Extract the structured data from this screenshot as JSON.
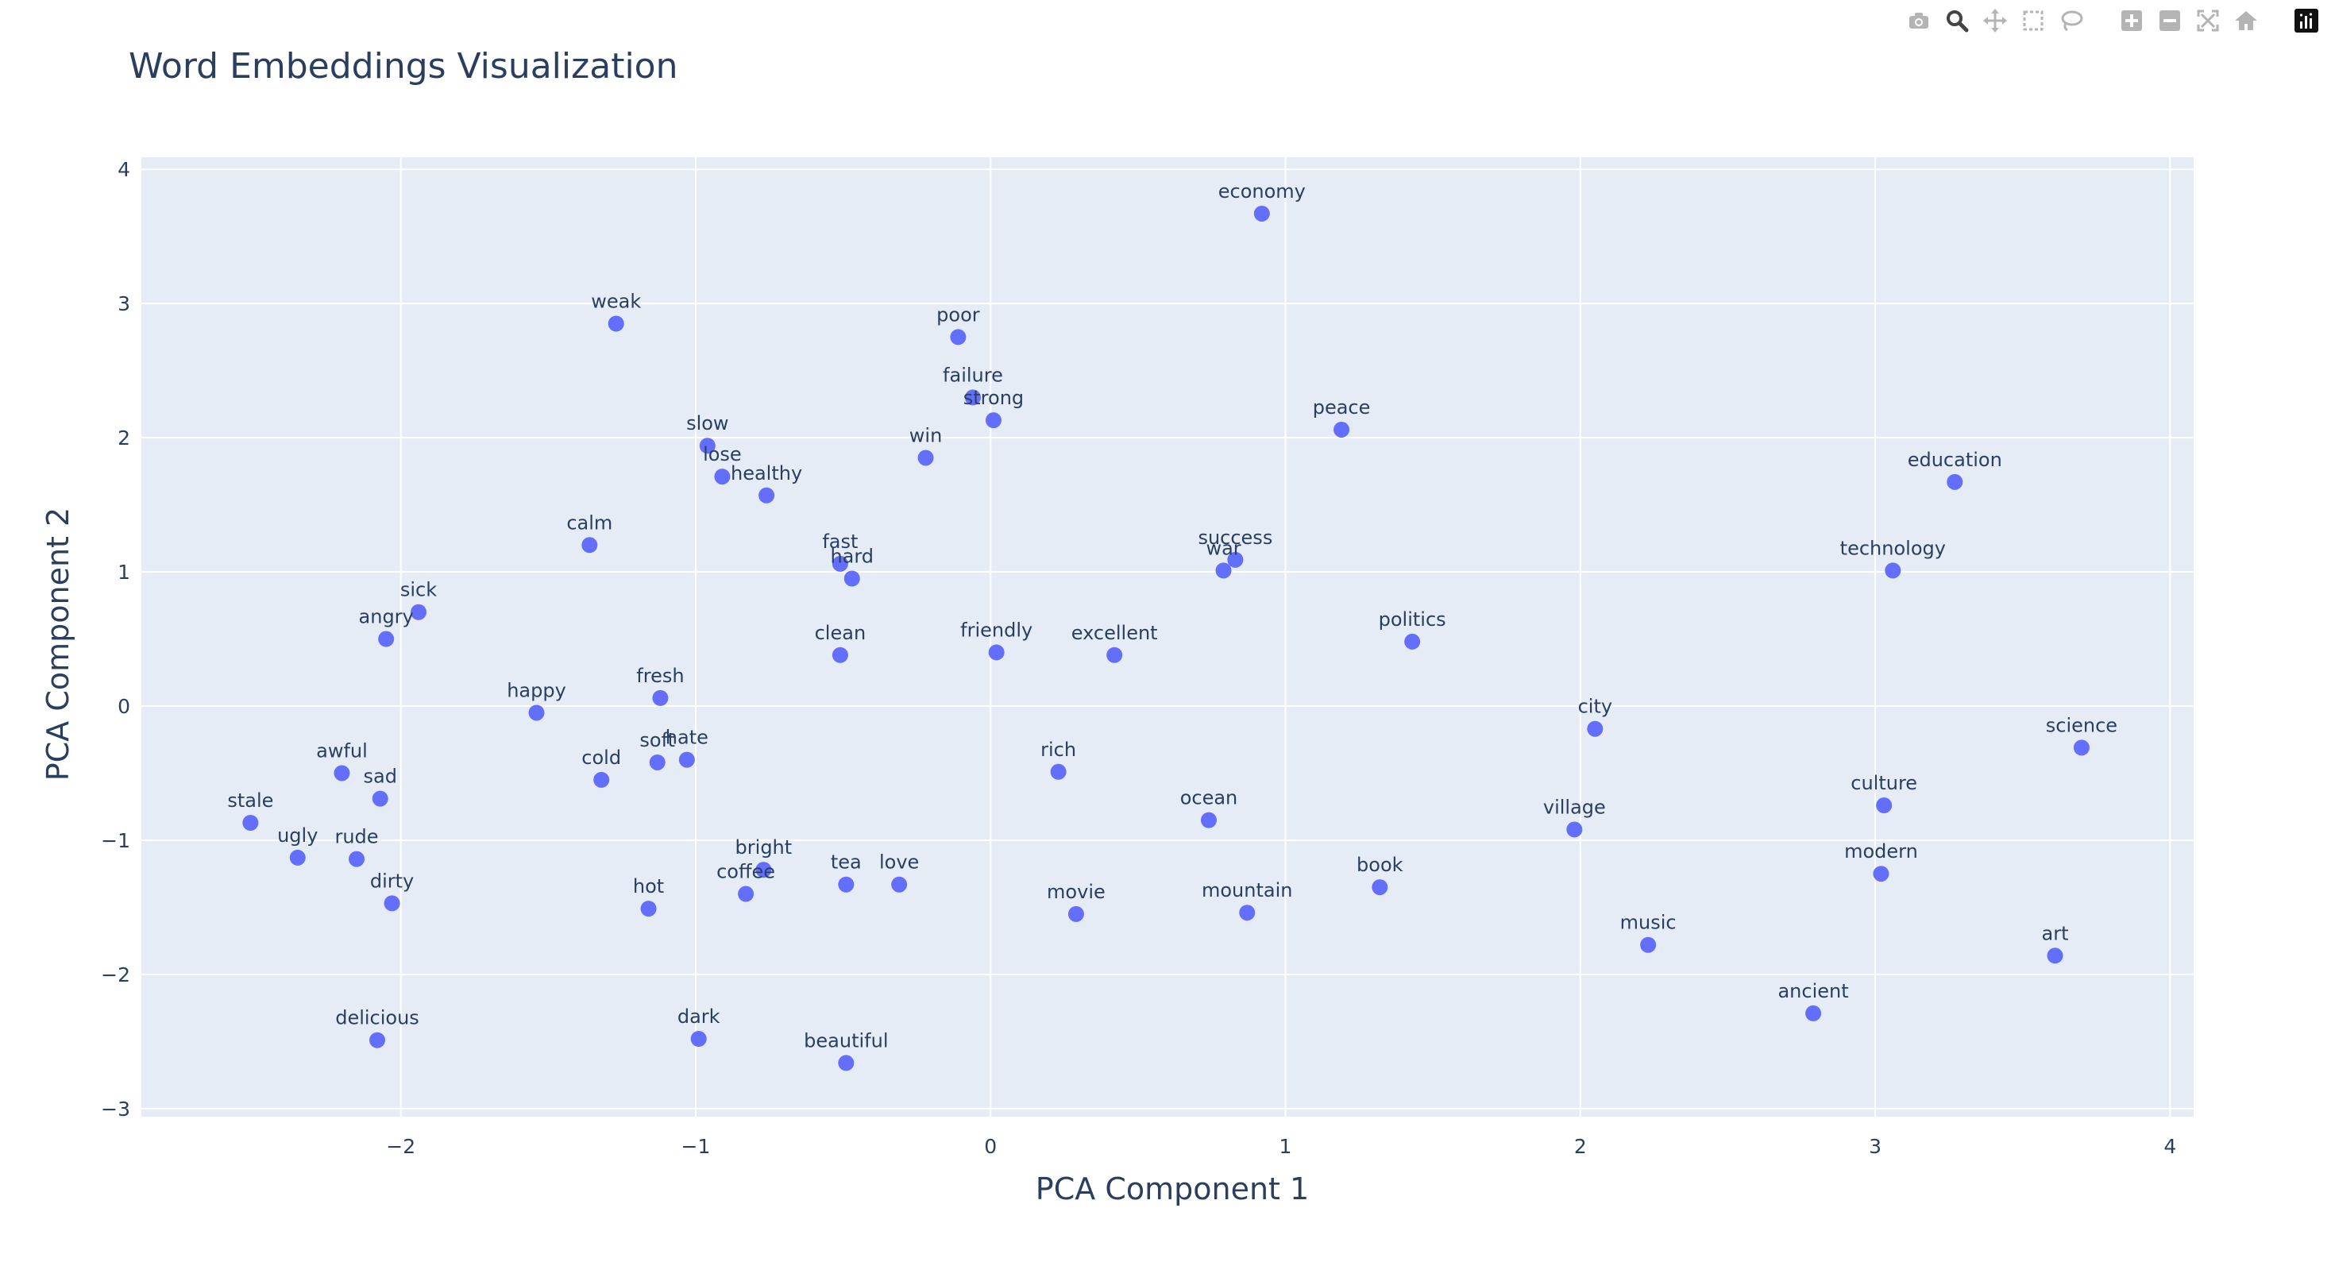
{
  "chart_data": {
    "type": "scatter",
    "title": "Word Embeddings Visualization",
    "xlabel": "PCA Component 1",
    "ylabel": "PCA Component 2",
    "xlim": [
      -2.88,
      4.08
    ],
    "ylim": [
      -3.06,
      4.09
    ],
    "xticks": [
      -2,
      -1,
      0,
      1,
      2,
      3,
      4
    ],
    "yticks": [
      -3,
      -2,
      -1,
      0,
      1,
      2,
      3,
      4
    ],
    "xtick_labels": [
      "−2",
      "−1",
      "0",
      "1",
      "2",
      "3",
      "4"
    ],
    "ytick_labels": [
      "−3",
      "−2",
      "−1",
      "0",
      "1",
      "2",
      "3",
      "4"
    ],
    "grid": true,
    "marker_color": "#636efa",
    "plot_background": "#e5ecf6",
    "text_color": "#2a3f5f",
    "points": [
      {
        "label": "economy",
        "x": 0.92,
        "y": 3.67
      },
      {
        "label": "weak",
        "x": -1.27,
        "y": 2.85
      },
      {
        "label": "poor",
        "x": -0.11,
        "y": 2.75
      },
      {
        "label": "failure",
        "x": -0.06,
        "y": 2.3
      },
      {
        "label": "strong",
        "x": 0.01,
        "y": 2.13
      },
      {
        "label": "peace",
        "x": 1.19,
        "y": 2.06
      },
      {
        "label": "win",
        "x": -0.22,
        "y": 1.85
      },
      {
        "label": "slow",
        "x": -0.96,
        "y": 1.94
      },
      {
        "label": "lose",
        "x": -0.91,
        "y": 1.71
      },
      {
        "label": "healthy",
        "x": -0.76,
        "y": 1.57
      },
      {
        "label": "education",
        "x": 3.27,
        "y": 1.67
      },
      {
        "label": "calm",
        "x": -1.36,
        "y": 1.2
      },
      {
        "label": "fast",
        "x": -0.51,
        "y": 1.06
      },
      {
        "label": "hard",
        "x": -0.47,
        "y": 0.95
      },
      {
        "label": "success",
        "x": 0.83,
        "y": 1.09
      },
      {
        "label": "war",
        "x": 0.79,
        "y": 1.01
      },
      {
        "label": "technology",
        "x": 3.06,
        "y": 1.01
      },
      {
        "label": "sick",
        "x": -1.94,
        "y": 0.7
      },
      {
        "label": "angry",
        "x": -2.05,
        "y": 0.5
      },
      {
        "label": "politics",
        "x": 1.43,
        "y": 0.48
      },
      {
        "label": "clean",
        "x": -0.51,
        "y": 0.38
      },
      {
        "label": "friendly",
        "x": 0.02,
        "y": 0.4
      },
      {
        "label": "excellent",
        "x": 0.42,
        "y": 0.38
      },
      {
        "label": "fresh",
        "x": -1.12,
        "y": 0.06
      },
      {
        "label": "happy",
        "x": -1.54,
        "y": -0.05
      },
      {
        "label": "city",
        "x": 2.05,
        "y": -0.17
      },
      {
        "label": "science",
        "x": 3.7,
        "y": -0.31
      },
      {
        "label": "soft",
        "x": -1.13,
        "y": -0.42
      },
      {
        "label": "hate",
        "x": -1.03,
        "y": -0.4
      },
      {
        "label": "cold",
        "x": -1.32,
        "y": -0.55
      },
      {
        "label": "rich",
        "x": 0.23,
        "y": -0.49
      },
      {
        "label": "awful",
        "x": -2.2,
        "y": -0.5
      },
      {
        "label": "sad",
        "x": -2.07,
        "y": -0.69
      },
      {
        "label": "ocean",
        "x": 0.74,
        "y": -0.85
      },
      {
        "label": "culture",
        "x": 3.03,
        "y": -0.74
      },
      {
        "label": "village",
        "x": 1.98,
        "y": -0.92
      },
      {
        "label": "stale",
        "x": -2.51,
        "y": -0.87
      },
      {
        "label": "ugly",
        "x": -2.35,
        "y": -1.13
      },
      {
        "label": "rude",
        "x": -2.15,
        "y": -1.14
      },
      {
        "label": "bright",
        "x": -0.77,
        "y": -1.22
      },
      {
        "label": "coffee",
        "x": -0.83,
        "y": -1.4
      },
      {
        "label": "tea",
        "x": -0.49,
        "y": -1.33
      },
      {
        "label": "love",
        "x": -0.31,
        "y": -1.33
      },
      {
        "label": "dirty",
        "x": -2.03,
        "y": -1.47
      },
      {
        "label": "hot",
        "x": -1.16,
        "y": -1.51
      },
      {
        "label": "movie",
        "x": 0.29,
        "y": -1.55
      },
      {
        "label": "mountain",
        "x": 0.87,
        "y": -1.54
      },
      {
        "label": "book",
        "x": 1.32,
        "y": -1.35
      },
      {
        "label": "modern",
        "x": 3.02,
        "y": -1.25
      },
      {
        "label": "music",
        "x": 2.23,
        "y": -1.78
      },
      {
        "label": "art",
        "x": 3.61,
        "y": -1.86
      },
      {
        "label": "ancient",
        "x": 2.79,
        "y": -2.29
      },
      {
        "label": "delicious",
        "x": -2.08,
        "y": -2.49
      },
      {
        "label": "dark",
        "x": -0.99,
        "y": -2.48
      },
      {
        "label": "beautiful",
        "x": -0.49,
        "y": -2.66
      }
    ]
  },
  "modebar": {
    "icons": [
      "camera-icon",
      "zoom-icon",
      "pan-icon",
      "box-select-icon",
      "lasso-select-icon",
      "zoom-in-icon",
      "zoom-out-icon",
      "autoscale-icon",
      "reset-axes-icon",
      "plotly-logo-icon"
    ],
    "active": "zoom-icon",
    "icon_color": "#b4b4b4",
    "active_color": "#444444"
  }
}
